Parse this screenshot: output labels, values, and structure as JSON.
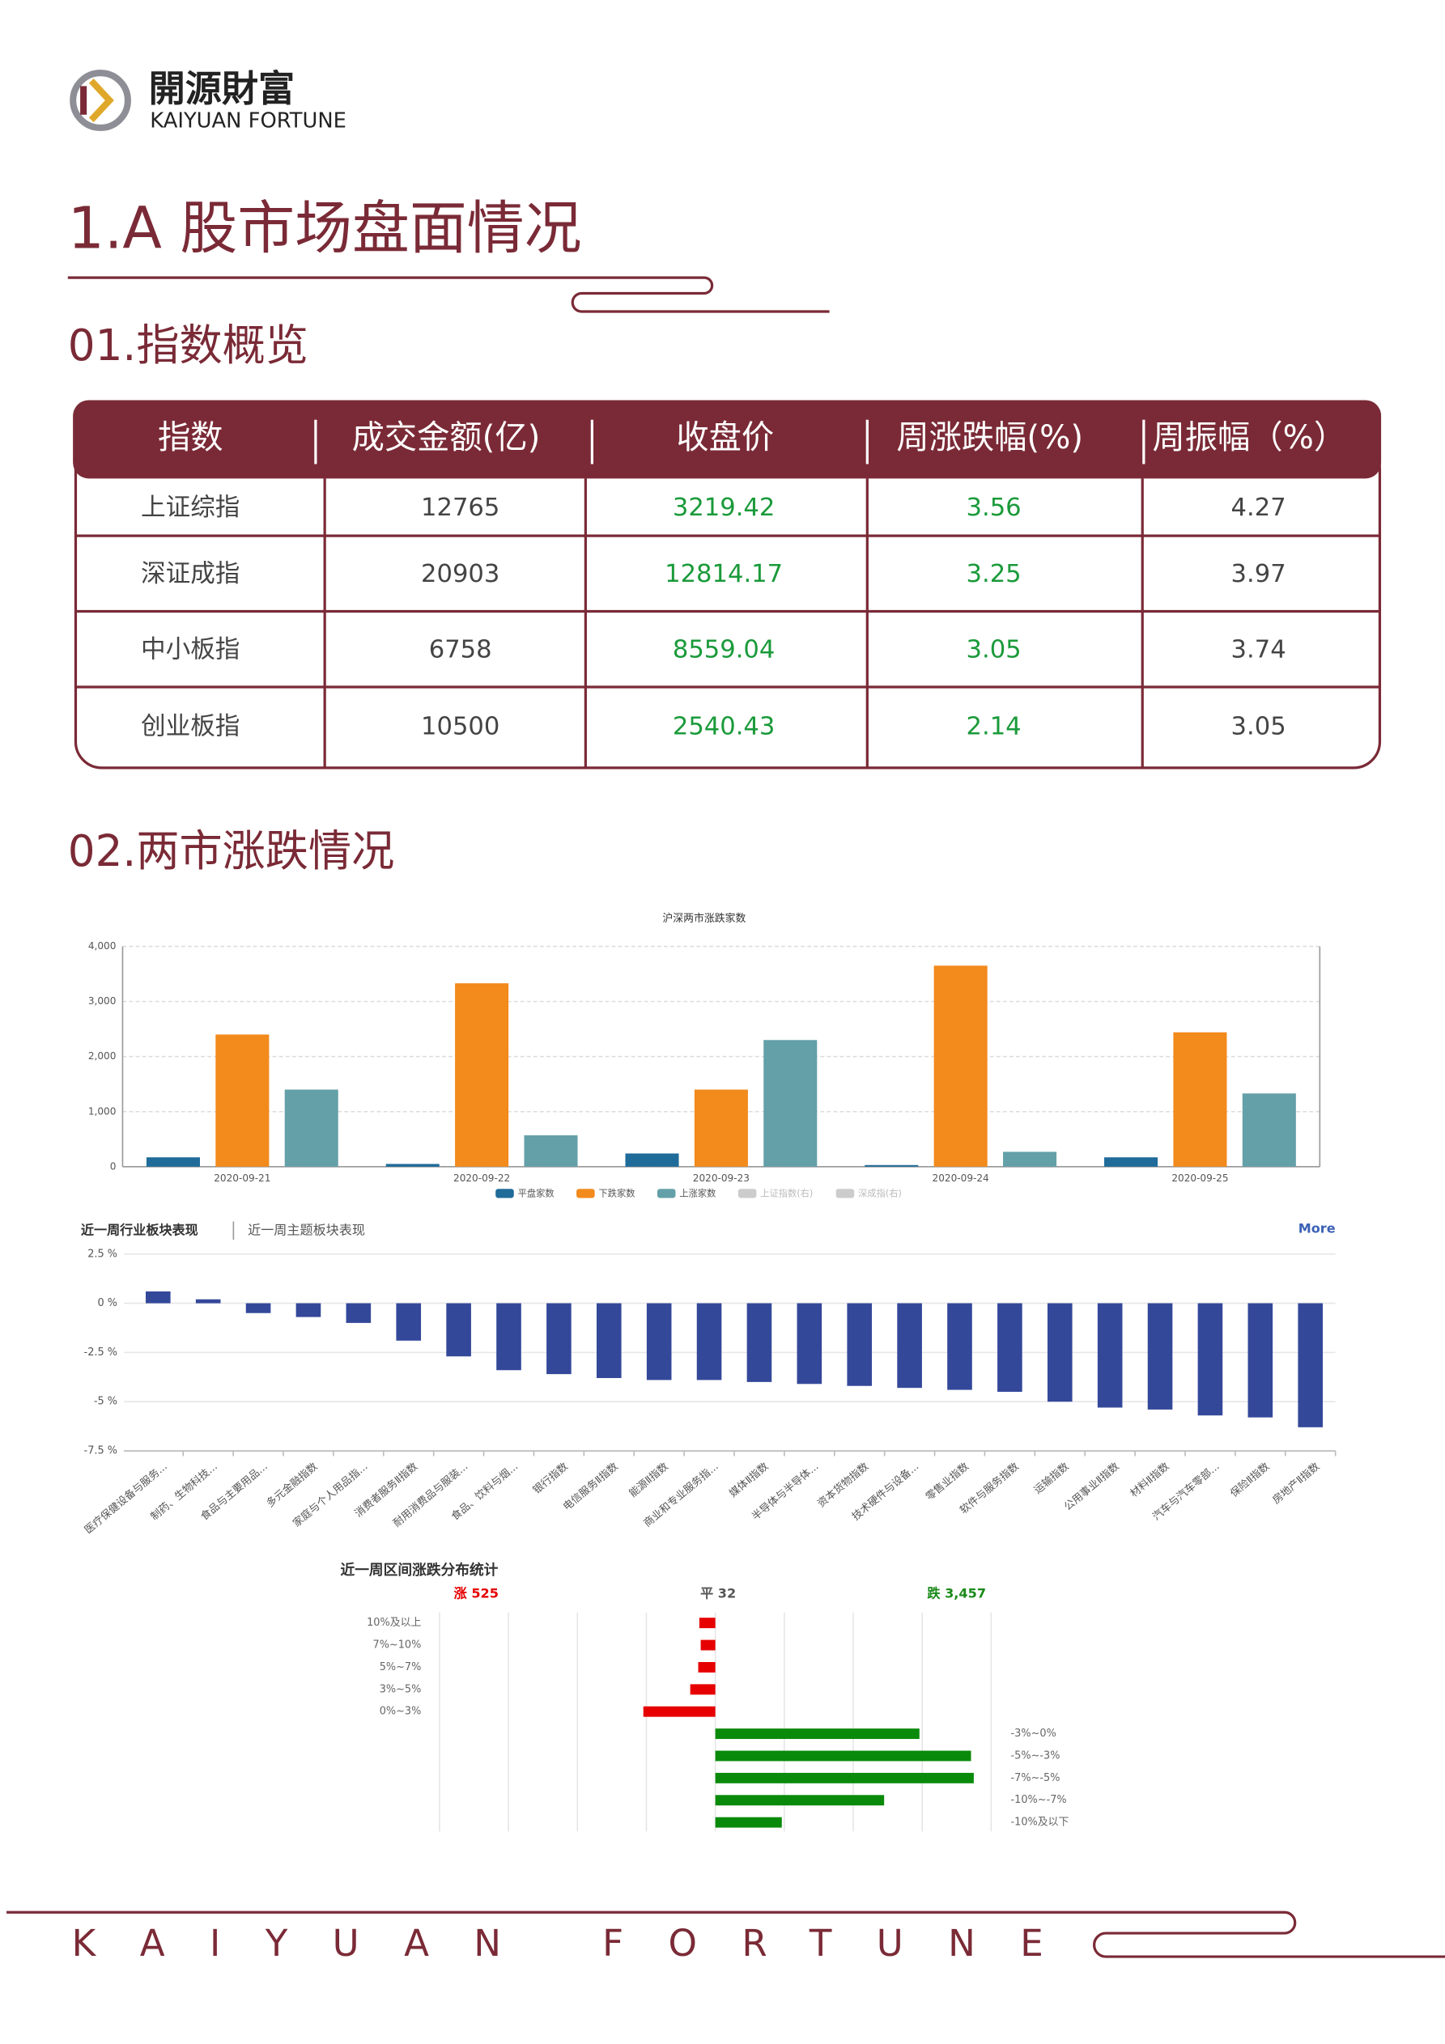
{
  "header": {
    "logo_cn": "開源財富",
    "logo_en": "KAIYUAN FORTUNE",
    "title": "1.A 股市场盘面情况"
  },
  "section1": "01.指数概览",
  "table": {
    "columns": [
      "指数",
      "成交金额(亿)",
      "收盘价",
      "周涨跌幅(%)",
      "周振幅（%）"
    ],
    "rows": [
      [
        "上证综指",
        "12765",
        "3219.42",
        "3.56",
        "4.27"
      ],
      [
        "深证成指",
        "20903",
        "12814.17",
        "3.25",
        "3.97"
      ],
      [
        "中小板指",
        "6758",
        "8559.04",
        "3.05",
        "3.74"
      ],
      [
        "创业板指",
        "10500",
        "2540.43",
        "2.14",
        "3.05"
      ]
    ],
    "column_colors": [
      "#444444",
      "#444444",
      "#1a9a3a",
      "#1a9a3a",
      "#444444"
    ]
  },
  "section2": "02.两市涨跌情况",
  "chart_data": [
    {
      "type": "grouped_bar",
      "title": "沪深两市涨跌家数",
      "categories": [
        "2020-09-21",
        "2020-09-22",
        "2020-09-23",
        "2020-09-24",
        "2020-09-25"
      ],
      "series": [
        {
          "name": "平盘家数",
          "color": "#1f6b9a",
          "values": [
            170,
            50,
            240,
            30,
            170
          ]
        },
        {
          "name": "下跌家数",
          "color": "#f28a1c",
          "values": [
            2400,
            3330,
            1400,
            3650,
            2440
          ]
        },
        {
          "name": "上涨家数",
          "color": "#64a0a8",
          "values": [
            1400,
            570,
            2300,
            270,
            1330
          ]
        }
      ],
      "disabled_legend": [
        "上证指数(右)",
        "深成指(右)"
      ],
      "ylim": [
        0,
        4000
      ],
      "yticks": [
        0,
        {
          "value": 1000,
          "label": "1,000"
        },
        {
          "value": 2000,
          "label": "2,000"
        },
        {
          "value": 3000,
          "label": "3,000"
        },
        {
          "value": 4000,
          "label": "4,000"
        }
      ],
      "grid": true
    },
    {
      "type": "bar",
      "tabs": [
        "近一周行业板块表现",
        "近一周主题板块表现"
      ],
      "more": "More",
      "categories": [
        "医疗保健设备与服务...",
        "制药、生物科技...",
        "食品与主要用品...",
        "多元金融指数",
        "家庭与个人用品指...",
        "消费者服务Ⅱ指数",
        "耐用消费品与服装...",
        "食品、饮料与烟...",
        "银行指数",
        "电信服务Ⅱ指数",
        "能源Ⅱ指数",
        "商业和专业服务指...",
        "媒体Ⅱ指数",
        "半导体与半导体...",
        "资本货物指数",
        "技术硬件与设备...",
        "零售业指数",
        "软件与服务指数",
        "运输指数",
        "公用事业Ⅱ指数",
        "材料Ⅱ指数",
        "汽车与汽车零部...",
        "保险Ⅱ指数",
        "房地产Ⅱ指数"
      ],
      "values": [
        0.6,
        0.2,
        -0.5,
        -0.7,
        -1.0,
        -1.9,
        -2.7,
        -3.4,
        -3.6,
        -3.8,
        -3.9,
        -3.9,
        -4.0,
        -4.1,
        -4.2,
        -4.3,
        -4.4,
        -4.5,
        -5.0,
        -5.3,
        -5.4,
        -5.7,
        -5.8,
        -6.3
      ],
      "color": "#34489a",
      "ylim": [
        -7.5,
        2.5
      ],
      "yticks": [
        {
          "value": 2.5,
          "label": "2.5 %"
        },
        {
          "value": 0,
          "label": "0 %"
        },
        {
          "value": -2.5,
          "label": "-2.5 %"
        },
        {
          "value": -5,
          "label": "-5 %"
        },
        {
          "value": -7.5,
          "label": "-7.5 %"
        }
      ],
      "grid": true
    },
    {
      "type": "diverging_bar",
      "title": "近一周区间涨跌分布统计",
      "summary": [
        "涨 525",
        "平 32",
        "跌 3,457"
      ],
      "summary_colors": [
        "#e60000",
        "#555555",
        "#1a8a1a"
      ],
      "xlim": [
        -1000,
        1000
      ],
      "series": [
        {
          "color": "#e60000",
          "direction": "left",
          "categories": [
            "10%及以上",
            "7%~10%",
            "5%~7%",
            "3%~5%",
            "0%~3%"
          ],
          "values": [
            58,
            53,
            62,
            91,
            261
          ]
        },
        {
          "color": "#0a8a0a",
          "direction": "right",
          "categories": [
            "-3%~0%",
            "-5%~-3%",
            "-7%~-5%",
            "-10%~-7%",
            "-10%及以下"
          ],
          "values": [
            740,
            927,
            937,
            612,
            241
          ]
        }
      ]
    }
  ],
  "footer": "KAIYUAN FORTUNE"
}
